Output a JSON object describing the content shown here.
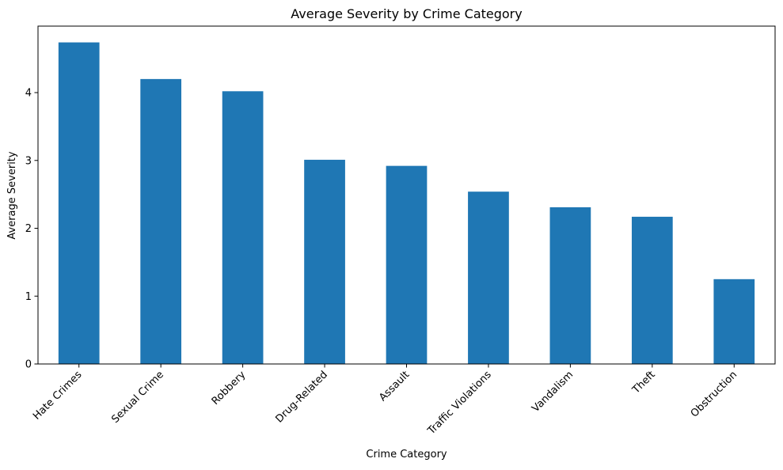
{
  "chart_data": {
    "type": "bar",
    "title": "Average Severity by Crime Category",
    "xlabel": "Crime Category",
    "ylabel": "Average Severity",
    "categories": [
      "Hate Crimes",
      "Sexual Crime",
      "Robbery",
      "Drug-Related",
      "Assault",
      "Traffic Violations",
      "Vandalism",
      "Theft",
      "Obstruction"
    ],
    "values": [
      4.74,
      4.2,
      4.02,
      3.01,
      2.92,
      2.54,
      2.31,
      2.17,
      1.25
    ],
    "ylim": [
      0,
      4.98
    ],
    "yticks": [
      0,
      1,
      2,
      3,
      4
    ],
    "bar_color": "#1f77b4",
    "grid": false,
    "legend": "none"
  }
}
